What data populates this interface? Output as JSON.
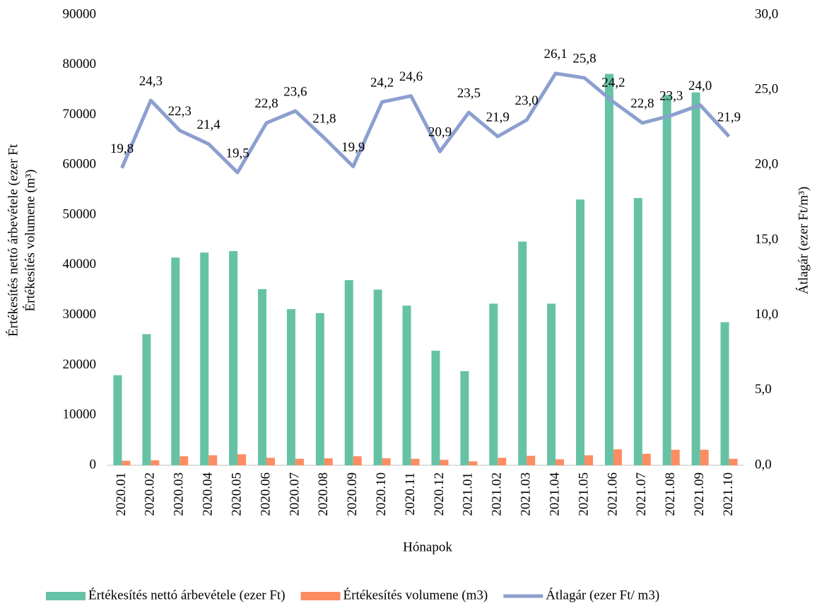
{
  "chart_data": {
    "type": "bar-line",
    "x_label": "Hónapok",
    "y_label": [
      "Értékesítés nettó árbevétele (ezer Ft",
      "Értékesítés volumene (m³)"
    ],
    "y2_label": "Átlagár (ezer Ft/m³)",
    "categories": [
      "2020.01",
      "2020.02",
      "2020.03",
      "2020.04",
      "2020.05",
      "2020.06",
      "2020.07",
      "2020.08",
      "2020.09",
      "2020.10",
      "2020.11",
      "2020.12",
      "2021.01",
      "2021.02",
      "2021.03",
      "2021.04",
      "2021.05",
      "2021.06",
      "2021.07",
      "2021.08",
      "2021.09",
      "2021.10"
    ],
    "series": [
      {
        "name": "Értékesítés nettó árbevétele (ezer Ft)",
        "type": "bar",
        "color": "#66c2a5",
        "values": [
          18000,
          26200,
          41500,
          42500,
          42800,
          35200,
          31200,
          30400,
          37000,
          35100,
          31900,
          22900,
          18800,
          32300,
          44700,
          32300,
          53100,
          78200,
          53400,
          74000,
          74500,
          28600
        ]
      },
      {
        "name": "Értékesítés volumene (m3)",
        "type": "bar",
        "color": "#fc8d62",
        "values": [
          900,
          1000,
          1800,
          2000,
          2200,
          1500,
          1300,
          1400,
          1800,
          1400,
          1300,
          1100,
          800,
          1500,
          1900,
          1200,
          2000,
          3200,
          2300,
          3100,
          3100,
          1300
        ]
      },
      {
        "name": "Átlagár (ezer Ft/ m3)",
        "type": "line",
        "axis": "y2",
        "color": "#8c9fcf",
        "values": [
          19.8,
          24.3,
          22.3,
          21.4,
          19.5,
          22.8,
          23.6,
          21.8,
          19.9,
          24.2,
          24.6,
          20.9,
          23.5,
          21.9,
          23.0,
          26.1,
          25.8,
          24.2,
          22.8,
          23.3,
          24.0,
          21.9
        ],
        "value_labels": [
          "19,8",
          "24,3",
          "22,3",
          "21,4",
          "19,5",
          "22,8",
          "23,6",
          "21,8",
          "19,9",
          "24,2",
          "24,6",
          "20,9",
          "23,5",
          "21,9",
          "23,0",
          "26,1",
          "25,8",
          "24,2",
          "22,8",
          "23,3",
          "24,0",
          "21,9"
        ]
      }
    ],
    "ylim": [
      0,
      90000
    ],
    "yticks": [
      0,
      10000,
      20000,
      30000,
      40000,
      50000,
      60000,
      70000,
      80000,
      90000
    ],
    "y2lim": [
      0,
      30
    ],
    "y2ticks": [
      {
        "value": 0,
        "label": "0,0"
      },
      {
        "value": 5,
        "label": "5,0"
      },
      {
        "value": 10,
        "label": "10,0"
      },
      {
        "value": 15,
        "label": "15,0"
      },
      {
        "value": 20,
        "label": "20,0"
      },
      {
        "value": 25,
        "label": "25,0"
      },
      {
        "value": 30,
        "label": "30,0"
      }
    ],
    "grid": false,
    "legend": "bottom"
  }
}
